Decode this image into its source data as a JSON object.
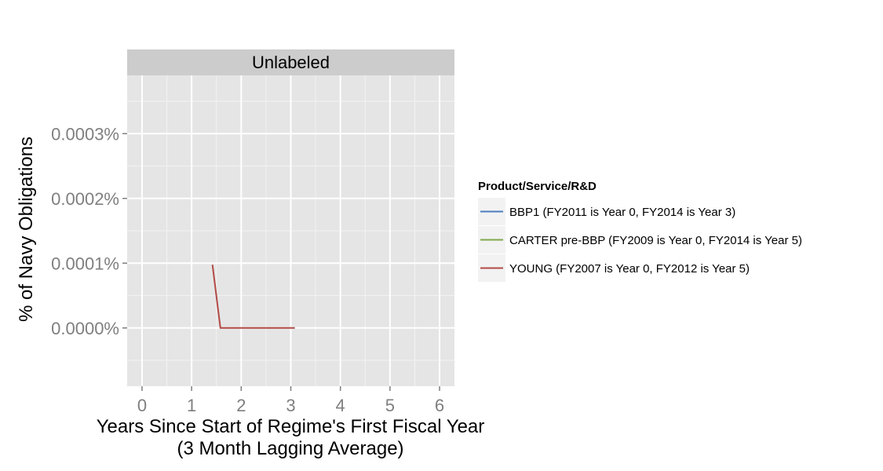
{
  "chart_data": {
    "type": "line",
    "panel_label": "Unlabeled",
    "xlabel_line1": "Years Since Start of Regime's First Fiscal Year",
    "xlabel_line2": "(3 Month Lagging Average)",
    "ylabel": "% of Navy Obligations",
    "xlim": [
      -0.3,
      6.3
    ],
    "ylim": [
      -9e-05,
      0.00039
    ],
    "x_ticks": [
      0,
      1,
      2,
      3,
      4,
      5,
      6
    ],
    "x_tick_labels": [
      "0",
      "1",
      "2",
      "3",
      "4",
      "5",
      "6"
    ],
    "y_ticks": [
      0,
      0.0001,
      0.0002,
      0.0003
    ],
    "y_tick_labels": [
      "0.0000%",
      "0.0001%",
      "0.0002%",
      "0.0003%"
    ],
    "grid": true,
    "legend": {
      "title": "Product/Service/R&D",
      "placement": "right",
      "entries": [
        {
          "label": "BBP1 (FY2011 is Year 0, FY2014 is Year 3)",
          "color": "#4a7fc1"
        },
        {
          "label": "CARTER pre-BBP (FY2009 is Year 0, FY2014 is Year 5)",
          "color": "#7fa84a"
        },
        {
          "label": "YOUNG (FY2007 is Year 0, FY2012 is Year 5)",
          "color": "#b24a45"
        }
      ]
    },
    "series": [
      {
        "name": "BBP1 (FY2011 is Year 0, FY2014 is Year 3)",
        "color": "#4a7fc1",
        "points": []
      },
      {
        "name": "CARTER pre-BBP (FY2009 is Year 0, FY2014 is Year 5)",
        "color": "#7fa84a",
        "points": []
      },
      {
        "name": "YOUNG (FY2007 is Year 0, FY2012 is Year 5)",
        "color": "#b24a45",
        "points": [
          [
            1.42,
            9.75e-05
          ],
          [
            1.58,
            0
          ],
          [
            1.75,
            0
          ],
          [
            2.0,
            0
          ],
          [
            2.25,
            0
          ],
          [
            2.5,
            0
          ],
          [
            2.75,
            0
          ],
          [
            3.0,
            0
          ],
          [
            3.08,
            0
          ]
        ]
      }
    ]
  }
}
